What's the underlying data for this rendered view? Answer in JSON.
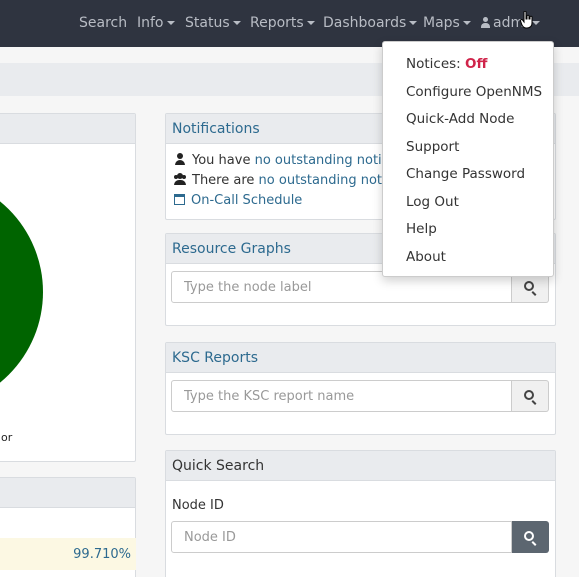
{
  "navbar": {
    "items": [
      {
        "label": "Search",
        "caret": false
      },
      {
        "label": "Info",
        "caret": true
      },
      {
        "label": "Status",
        "caret": true
      },
      {
        "label": "Reports",
        "caret": true
      },
      {
        "label": "Dashboards",
        "caret": true
      },
      {
        "label": "Maps",
        "caret": true
      }
    ],
    "user_label": "adm"
  },
  "colors": {
    "navbar": "#2f3440",
    "link": "#2d6a8f",
    "chart_green": "#006400",
    "off_red": "#d0244a",
    "availability_row": "#fcf8e3"
  },
  "left_panel": {
    "legend_fragment": "or",
    "availability_value": "99.710%"
  },
  "notifications": {
    "title": "Notifications",
    "user_prefix": "You have",
    "user_link": "no outstanding notices",
    "group_prefix": "There are",
    "group_link": "no outstanding notice",
    "oncall_link": "On-Call Schedule"
  },
  "resource_graphs": {
    "title": "Resource Graphs",
    "placeholder": "Type the node label"
  },
  "ksc_reports": {
    "title": "KSC Reports",
    "placeholder": "Type the KSC report name"
  },
  "quick_search": {
    "title": "Quick Search",
    "field_label": "Node ID",
    "placeholder": "Node ID"
  },
  "user_menu": {
    "notices_label": "Notices:",
    "notices_state": "Off",
    "items": [
      "Configure OpenNMS",
      "Quick-Add Node",
      "Support",
      "Change Password",
      "Log Out",
      "Help",
      "About"
    ]
  }
}
